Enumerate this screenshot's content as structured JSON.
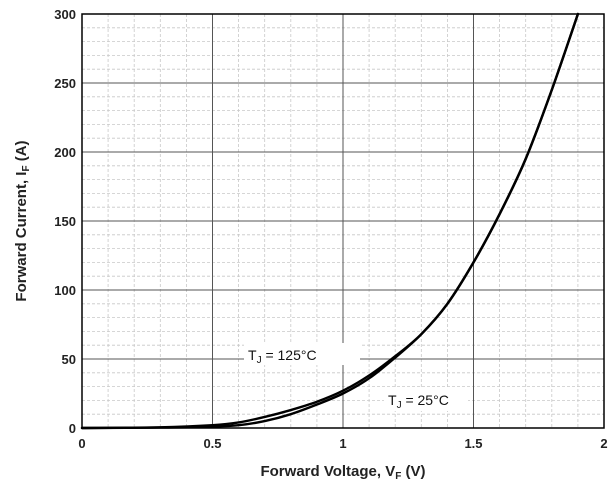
{
  "chart_data": {
    "type": "line",
    "title": "",
    "xlabel": "Forward Voltage, V",
    "xlabel_sub": "F",
    "xlabel_tail": " (V)",
    "ylabel": "Forward Current, I",
    "ylabel_sub": "F",
    "ylabel_tail": " (A)",
    "xlim": [
      0,
      2
    ],
    "ylim": [
      0,
      300
    ],
    "xticks": [
      0,
      0.5,
      1,
      1.5,
      2
    ],
    "xtick_labels": [
      "0",
      "0.5",
      "1",
      "1.5",
      "2"
    ],
    "yticks": [
      0,
      50,
      100,
      150,
      200,
      250,
      300
    ],
    "ytick_labels": [
      "0",
      "50",
      "100",
      "150",
      "200",
      "250",
      "300"
    ],
    "grid": "major and minor",
    "line_color": "#000000",
    "series": [
      {
        "name": "TJ = 125°C",
        "x": [
          0,
          0.3,
          0.5,
          0.6,
          0.7,
          0.8,
          0.9,
          1.0,
          1.1,
          1.2,
          1.3,
          1.4,
          1.5,
          1.6,
          1.7,
          1.8,
          1.9
        ],
        "y": [
          0,
          0.5,
          2,
          4,
          8,
          13,
          19,
          27,
          38,
          52,
          68,
          90,
          120,
          155,
          195,
          245,
          300
        ]
      },
      {
        "name": "TJ = 25°C",
        "x": [
          0,
          0.3,
          0.5,
          0.6,
          0.7,
          0.8,
          0.9,
          1.0,
          1.1,
          1.2,
          1.3,
          1.4,
          1.5,
          1.6,
          1.7,
          1.8,
          1.9
        ],
        "y": [
          0,
          0.3,
          1,
          2,
          5,
          10,
          17,
          25,
          36,
          51,
          68,
          90,
          120,
          155,
          195,
          245,
          300
        ]
      }
    ],
    "annotations": [
      {
        "text_main": "T",
        "text_sub": "J",
        "text_tail": " = 125°C",
        "x": 0.78,
        "y": 52
      },
      {
        "text_main": "T",
        "text_sub": "J",
        "text_tail": " = 25°C",
        "x": 1.17,
        "y": 18
      }
    ]
  }
}
